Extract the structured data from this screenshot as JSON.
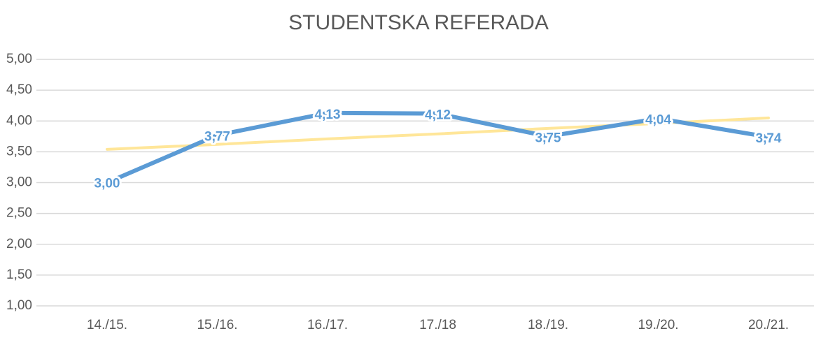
{
  "chart_data": {
    "type": "line",
    "title": "STUDENTSKA REFERADA",
    "categories": [
      "14./15.",
      "15./16.",
      "16./17.",
      "17./18",
      "18./19.",
      "19./20.",
      "20./21."
    ],
    "series": [
      {
        "name": "Studentska referada",
        "color": "#5b9bd5",
        "values": [
          3.0,
          3.77,
          4.13,
          4.12,
          3.75,
          4.04,
          3.74
        ],
        "value_labels": [
          "3,00",
          "3,77",
          "4,13",
          "4,12",
          "3,75",
          "4,04",
          "3,74"
        ]
      },
      {
        "color": "#ffe699",
        "values": [
          3.54,
          3.62,
          3.71,
          3.79,
          3.88,
          3.96,
          4.05
        ]
      }
    ],
    "ylim": [
      1,
      5
    ],
    "yticks": [
      {
        "value": 1,
        "label": "1,00"
      },
      {
        "value": 1.5,
        "label": "1,50"
      },
      {
        "value": 2,
        "label": "2,00"
      },
      {
        "value": 2.5,
        "label": "2,50"
      },
      {
        "value": 3,
        "label": "3,00"
      },
      {
        "value": 3.5,
        "label": "3,50"
      },
      {
        "value": 4,
        "label": "4,00"
      },
      {
        "value": 4.5,
        "label": "4,50"
      },
      {
        "value": 5,
        "label": "5,00"
      }
    ],
    "grid": true
  }
}
